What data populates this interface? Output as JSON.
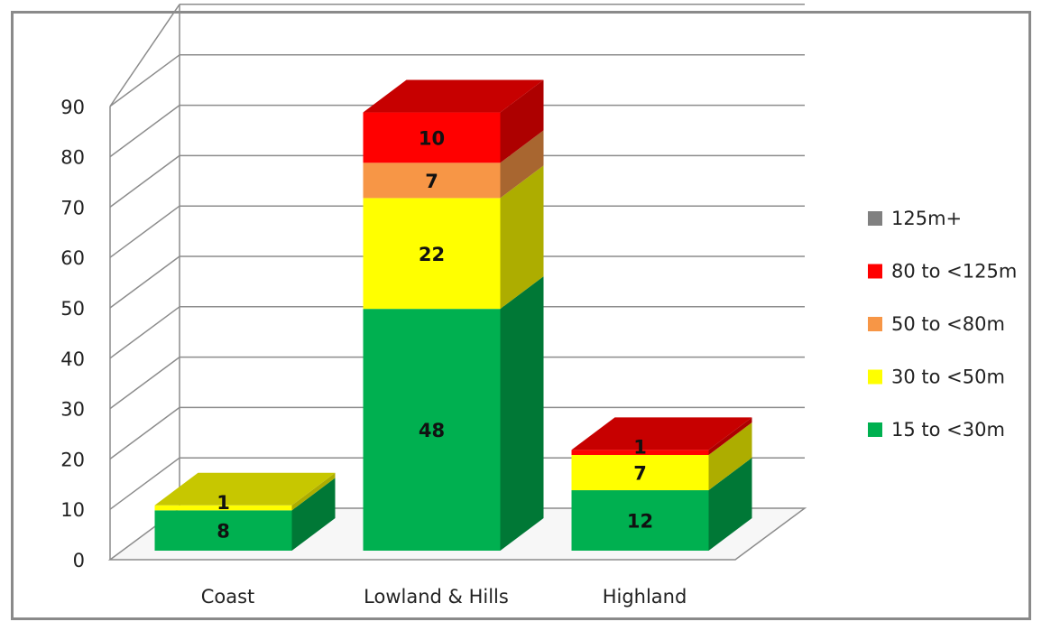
{
  "chart_data": {
    "type": "bar",
    "stacked": true,
    "three_d": true,
    "title": "",
    "xlabel": "",
    "ylabel": "",
    "ylim": [
      0,
      90
    ],
    "yticks": [
      0,
      10,
      20,
      30,
      40,
      50,
      60,
      70,
      80,
      90
    ],
    "grid": true,
    "legend_position": "right",
    "categories": [
      "Coast",
      "Lowland & Hills",
      "Highland"
    ],
    "series": [
      {
        "name": "15 to <30m",
        "color": "#00b050",
        "values": [
          8,
          48,
          12
        ]
      },
      {
        "name": "30 to <50m",
        "color": "#ffff00",
        "values": [
          1,
          22,
          7
        ]
      },
      {
        "name": "50 to <80m",
        "color": "#f79646",
        "values": [
          0,
          7,
          0
        ]
      },
      {
        "name": "80 to <125m",
        "color": "#ff0000",
        "values": [
          0,
          10,
          1
        ]
      },
      {
        "name": "125m+",
        "color": "#808080",
        "values": [
          0,
          0,
          0
        ]
      }
    ],
    "legend_order": [
      "125m+",
      "80 to <125m",
      "50 to <80m",
      "30 to <50m",
      "15 to <30m"
    ]
  }
}
